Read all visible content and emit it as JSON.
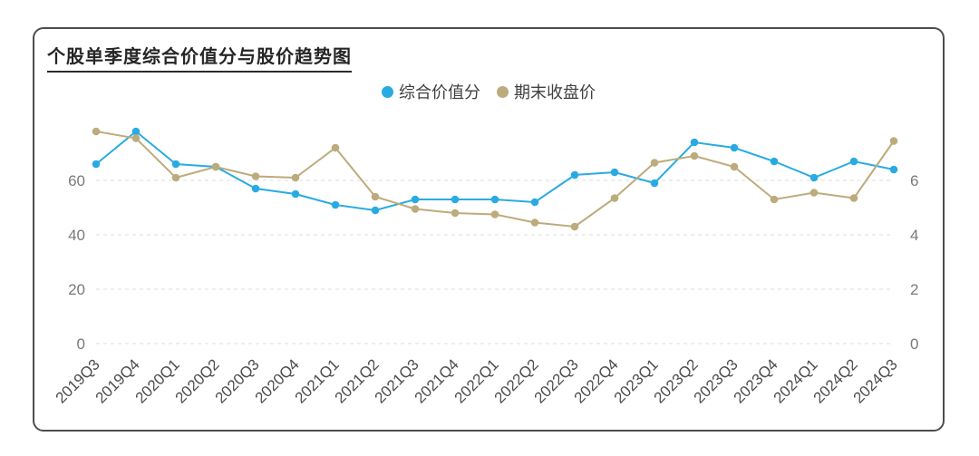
{
  "card": {
    "title": "个股单季度综合价值分与股价趋势图"
  },
  "legend": [
    {
      "label": "综合价值分",
      "color": "#29abe2"
    },
    {
      "label": "期末收盘价",
      "color": "#bcab7c"
    }
  ],
  "chart_data": {
    "type": "line",
    "title": "个股单季度综合价值分与股价趋势图",
    "categories": [
      "2019Q3",
      "2019Q4",
      "2020Q1",
      "2020Q2",
      "2020Q3",
      "2020Q4",
      "2021Q1",
      "2021Q2",
      "2021Q3",
      "2021Q4",
      "2022Q1",
      "2022Q2",
      "2022Q3",
      "2022Q4",
      "2023Q1",
      "2023Q2",
      "2023Q3",
      "2023Q4",
      "2024Q1",
      "2024Q2",
      "2024Q3"
    ],
    "series": [
      {
        "name": "综合价值分",
        "axis": "left",
        "color": "#29abe2",
        "values": [
          66,
          78,
          66,
          65,
          57,
          55,
          51,
          49,
          53,
          53,
          53,
          52,
          62,
          63,
          59,
          74,
          72,
          67,
          61,
          67,
          64
        ]
      },
      {
        "name": "期末收盘价",
        "axis": "right",
        "color": "#bcab7c",
        "values": [
          7.8,
          7.55,
          6.1,
          6.5,
          6.15,
          6.1,
          7.2,
          5.4,
          4.95,
          4.8,
          4.75,
          4.45,
          4.3,
          5.35,
          6.65,
          6.9,
          6.5,
          5.3,
          5.55,
          5.35,
          7.45
        ]
      }
    ],
    "left_axis": {
      "ticks": [
        0,
        20,
        40,
        60
      ],
      "min": 0,
      "max": 80
    },
    "right_axis": {
      "ticks": [
        0,
        2,
        4,
        6
      ],
      "min": 0,
      "max": 8
    },
    "grid": true,
    "legend_position": "top",
    "x_label_rotation": -45
  }
}
